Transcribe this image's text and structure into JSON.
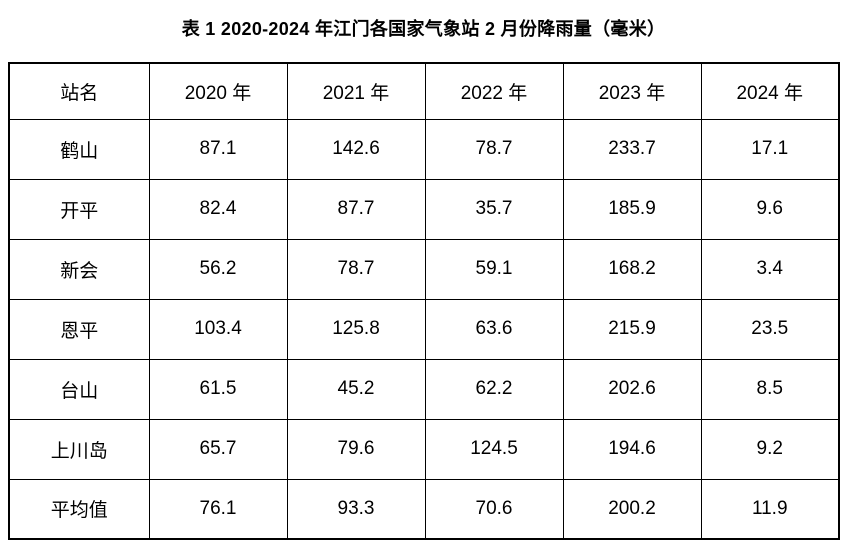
{
  "title": "表 1 2020-2024 年江门各国家气象站 2 月份降雨量（毫米）",
  "table": {
    "columns": [
      "站名",
      "2020 年",
      "2021 年",
      "2022 年",
      "2023 年",
      "2024 年"
    ],
    "rows": [
      {
        "station": "鹤山",
        "values": [
          "87.1",
          "142.6",
          "78.7",
          "233.7",
          "17.1"
        ]
      },
      {
        "station": "开平",
        "values": [
          "82.4",
          "87.7",
          "35.7",
          "185.9",
          "9.6"
        ]
      },
      {
        "station": "新会",
        "values": [
          "56.2",
          "78.7",
          "59.1",
          "168.2",
          "3.4"
        ]
      },
      {
        "station": "恩平",
        "values": [
          "103.4",
          "125.8",
          "63.6",
          "215.9",
          "23.5"
        ]
      },
      {
        "station": "台山",
        "values": [
          "61.5",
          "45.2",
          "62.2",
          "202.6",
          "8.5"
        ]
      },
      {
        "station": "上川岛",
        "values": [
          "65.7",
          "79.6",
          "124.5",
          "194.6",
          "9.2"
        ]
      },
      {
        "station": "平均值",
        "values": [
          "76.1",
          "93.3",
          "70.6",
          "200.2",
          "11.9"
        ]
      }
    ]
  },
  "colors": {
    "text": "#000000",
    "border": "#000000",
    "background": "#ffffff"
  },
  "chart_data": {
    "type": "table",
    "title": "表 1 2020-2024 年江门各国家气象站 2 月份降雨量（毫米）",
    "categories": [
      "2020 年",
      "2021 年",
      "2022 年",
      "2023 年",
      "2024 年"
    ],
    "series": [
      {
        "name": "鹤山",
        "values": [
          87.1,
          142.6,
          78.7,
          233.7,
          17.1
        ]
      },
      {
        "name": "开平",
        "values": [
          82.4,
          87.7,
          35.7,
          185.9,
          9.6
        ]
      },
      {
        "name": "新会",
        "values": [
          56.2,
          78.7,
          59.1,
          168.2,
          3.4
        ]
      },
      {
        "name": "恩平",
        "values": [
          103.4,
          125.8,
          63.6,
          215.9,
          23.5
        ]
      },
      {
        "name": "台山",
        "values": [
          61.5,
          45.2,
          62.2,
          202.6,
          8.5
        ]
      },
      {
        "name": "上川岛",
        "values": [
          65.7,
          79.6,
          124.5,
          194.6,
          9.2
        ]
      },
      {
        "name": "平均值",
        "values": [
          76.1,
          93.3,
          70.6,
          200.2,
          11.9
        ]
      }
    ],
    "unit": "毫米"
  }
}
